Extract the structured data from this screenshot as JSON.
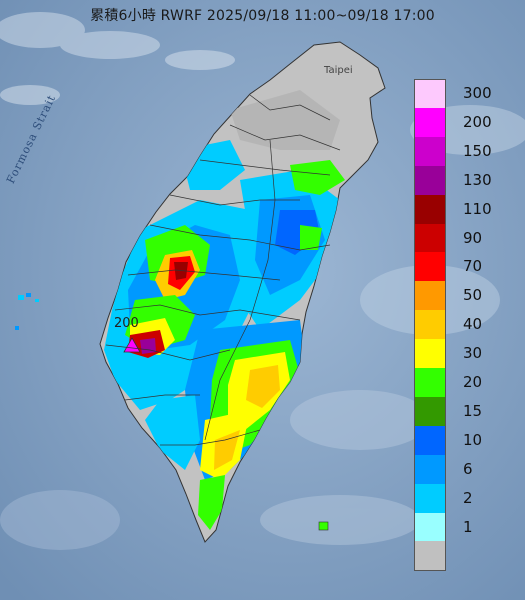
{
  "title": "累積6小時 RWRF 2025/09/18 11:00~09/18 17:00",
  "strait_label": "Formosa Strait",
  "city_label": "Taipei",
  "map_value_label": "200",
  "legend": [
    {
      "label": "300",
      "color": "#fdc9fd"
    },
    {
      "label": "200",
      "color": "#ff00ff"
    },
    {
      "label": "150",
      "color": "#cc00cc"
    },
    {
      "label": "130",
      "color": "#990099"
    },
    {
      "label": "110",
      "color": "#990000"
    },
    {
      "label": "90",
      "color": "#cc0000"
    },
    {
      "label": "70",
      "color": "#ff0000"
    },
    {
      "label": "50",
      "color": "#ff9900"
    },
    {
      "label": "40",
      "color": "#ffcc00"
    },
    {
      "label": "30",
      "color": "#ffff00"
    },
    {
      "label": "20",
      "color": "#33ff00"
    },
    {
      "label": "15",
      "color": "#339900"
    },
    {
      "label": "10",
      "color": "#0066ff"
    },
    {
      "label": "6",
      "color": "#0099ff"
    },
    {
      "label": "2",
      "color": "#00ccff"
    },
    {
      "label": "1",
      "color": "#99ffff"
    },
    {
      "label": "",
      "color": "#c0c0c0"
    }
  ]
}
